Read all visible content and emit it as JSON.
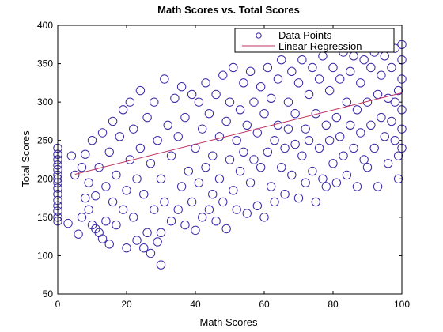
{
  "chart_data": {
    "type": "scatter",
    "title": "Math Scores vs. Total Scores",
    "xlabel": "Math Scores",
    "ylabel": "Total Scores",
    "xlim": [
      0,
      100
    ],
    "ylim": [
      50,
      400
    ],
    "xticks": [
      "0",
      "20",
      "40",
      "60",
      "80",
      "100"
    ],
    "yticks": [
      "50",
      "100",
      "150",
      "200",
      "250",
      "300",
      "350",
      "400"
    ],
    "grid": false,
    "legend_position": "top-right",
    "series": [
      {
        "name": "Data Points",
        "marker": "circle",
        "color": "#3b2aa8",
        "points": [
          [
            0,
            145
          ],
          [
            0,
            150
          ],
          [
            0,
            158
          ],
          [
            0,
            165
          ],
          [
            0,
            172
          ],
          [
            0,
            180
          ],
          [
            0,
            188
          ],
          [
            0,
            195
          ],
          [
            0,
            200
          ],
          [
            0,
            205
          ],
          [
            0,
            212
          ],
          [
            0,
            218
          ],
          [
            0,
            225
          ],
          [
            0,
            232
          ],
          [
            0,
            240
          ],
          [
            3,
            142
          ],
          [
            4,
            230
          ],
          [
            5,
            205
          ],
          [
            6,
            128
          ],
          [
            7,
            150
          ],
          [
            7,
            215
          ],
          [
            8,
            175
          ],
          [
            8,
            232
          ],
          [
            9,
            160
          ],
          [
            9,
            195
          ],
          [
            10,
            140
          ],
          [
            10,
            250
          ],
          [
            11,
            135
          ],
          [
            11,
            178
          ],
          [
            12,
            130
          ],
          [
            12,
            215
          ],
          [
            13,
            122
          ],
          [
            13,
            260
          ],
          [
            14,
            145
          ],
          [
            14,
            190
          ],
          [
            15,
            115
          ],
          [
            15,
            235
          ],
          [
            16,
            170
          ],
          [
            16,
            275
          ],
          [
            17,
            140
          ],
          [
            17,
            205
          ],
          [
            18,
            255
          ],
          [
            19,
            160
          ],
          [
            19,
            290
          ],
          [
            20,
            110
          ],
          [
            20,
            185
          ],
          [
            21,
            225
          ],
          [
            21,
            300
          ],
          [
            22,
            150
          ],
          [
            22,
            265
          ],
          [
            23,
            120
          ],
          [
            23,
            200
          ],
          [
            24,
            240
          ],
          [
            24,
            315
          ],
          [
            25,
            110
          ],
          [
            25,
            180
          ],
          [
            26,
            130
          ],
          [
            26,
            280
          ],
          [
            27,
            103
          ],
          [
            27,
            220
          ],
          [
            28,
            160
          ],
          [
            28,
            300
          ],
          [
            29,
            118
          ],
          [
            29,
            250
          ],
          [
            30,
            88
          ],
          [
            30,
            130
          ],
          [
            30,
            200
          ],
          [
            31,
            330
          ],
          [
            31,
            170
          ],
          [
            32,
            270
          ],
          [
            33,
            145
          ],
          [
            33,
            230
          ],
          [
            34,
            305
          ],
          [
            35,
            160
          ],
          [
            35,
            255
          ],
          [
            36,
            190
          ],
          [
            36,
            320
          ],
          [
            37,
            140
          ],
          [
            37,
            280
          ],
          [
            38,
            210
          ],
          [
            39,
            170
          ],
          [
            39,
            310
          ],
          [
            40,
            133
          ],
          [
            40,
            240
          ],
          [
            41,
            300
          ],
          [
            41,
            195
          ],
          [
            42,
            150
          ],
          [
            42,
            265
          ],
          [
            43,
            325
          ],
          [
            43,
            215
          ],
          [
            44,
            160
          ],
          [
            44,
            285
          ],
          [
            45,
            230
          ],
          [
            45,
            180
          ],
          [
            46,
            310
          ],
          [
            46,
            145
          ],
          [
            47,
            255
          ],
          [
            47,
            200
          ],
          [
            48,
            335
          ],
          [
            48,
            170
          ],
          [
            49,
            135
          ],
          [
            49,
            275
          ],
          [
            50,
            225
          ],
          [
            50,
            300
          ],
          [
            51,
            185
          ],
          [
            51,
            345
          ],
          [
            52,
            250
          ],
          [
            52,
            160
          ],
          [
            53,
            290
          ],
          [
            53,
            210
          ],
          [
            54,
            235
          ],
          [
            54,
            325
          ],
          [
            55,
            155
          ],
          [
            55,
            270
          ],
          [
            56,
            195
          ],
          [
            56,
            340
          ],
          [
            57,
            225
          ],
          [
            57,
            300
          ],
          [
            58,
            165
          ],
          [
            58,
            260
          ],
          [
            59,
            215
          ],
          [
            59,
            320
          ],
          [
            60,
            150
          ],
          [
            60,
            285
          ],
          [
            61,
            235
          ],
          [
            61,
            345
          ],
          [
            62,
            190
          ],
          [
            62,
            305
          ],
          [
            63,
            250
          ],
          [
            63,
            170
          ],
          [
            64,
            330
          ],
          [
            64,
            270
          ],
          [
            65,
            215
          ],
          [
            65,
            355
          ],
          [
            66,
            240
          ],
          [
            66,
            180
          ],
          [
            67,
            300
          ],
          [
            67,
            265
          ],
          [
            68,
            205
          ],
          [
            68,
            340
          ],
          [
            69,
            245
          ],
          [
            69,
            285
          ],
          [
            70,
            175
          ],
          [
            70,
            325
          ],
          [
            71,
            230
          ],
          [
            71,
            355
          ],
          [
            72,
            265
          ],
          [
            72,
            195
          ],
          [
            73,
            310
          ],
          [
            73,
            250
          ],
          [
            74,
            210
          ],
          [
            74,
            345
          ],
          [
            75,
            170
          ],
          [
            75,
            285
          ],
          [
            76,
            240
          ],
          [
            76,
            330
          ],
          [
            77,
            200
          ],
          [
            77,
            360
          ],
          [
            78,
            270
          ],
          [
            78,
            190
          ],
          [
            79,
            315
          ],
          [
            79,
            250
          ],
          [
            80,
            220
          ],
          [
            80,
            345
          ],
          [
            81,
            280
          ],
          [
            81,
            195
          ],
          [
            82,
            330
          ],
          [
            82,
            255
          ],
          [
            83,
            230
          ],
          [
            83,
            365
          ],
          [
            84,
            300
          ],
          [
            84,
            205
          ],
          [
            85,
            340
          ],
          [
            85,
            270
          ],
          [
            86,
            240
          ],
          [
            86,
            360
          ],
          [
            87,
            290
          ],
          [
            87,
            190
          ],
          [
            88,
            325
          ],
          [
            88,
            260
          ],
          [
            89,
            225
          ],
          [
            89,
            355
          ],
          [
            90,
            300
          ],
          [
            90,
            215
          ],
          [
            91,
            345
          ],
          [
            91,
            270
          ],
          [
            92,
            240
          ],
          [
            92,
            365
          ],
          [
            93,
            310
          ],
          [
            93,
            190
          ],
          [
            94,
            335
          ],
          [
            94,
            280
          ],
          [
            95,
            255
          ],
          [
            95,
            360
          ],
          [
            96,
            305
          ],
          [
            96,
            220
          ],
          [
            97,
            345
          ],
          [
            97,
            275
          ],
          [
            98,
            250
          ],
          [
            98,
            370
          ],
          [
            99,
            315
          ],
          [
            99,
            230
          ],
          [
            100,
            355
          ],
          [
            100,
            290
          ],
          [
            100,
            265
          ],
          [
            100,
            375
          ],
          [
            100,
            240
          ],
          [
            100,
            330
          ],
          [
            99,
            200
          ],
          [
            98,
            300
          ]
        ]
      },
      {
        "name": "Linear Regression",
        "type": "line",
        "color": "#c0305f",
        "x": [
          5,
          100
        ],
        "y": [
          206,
          312
        ]
      }
    ]
  }
}
